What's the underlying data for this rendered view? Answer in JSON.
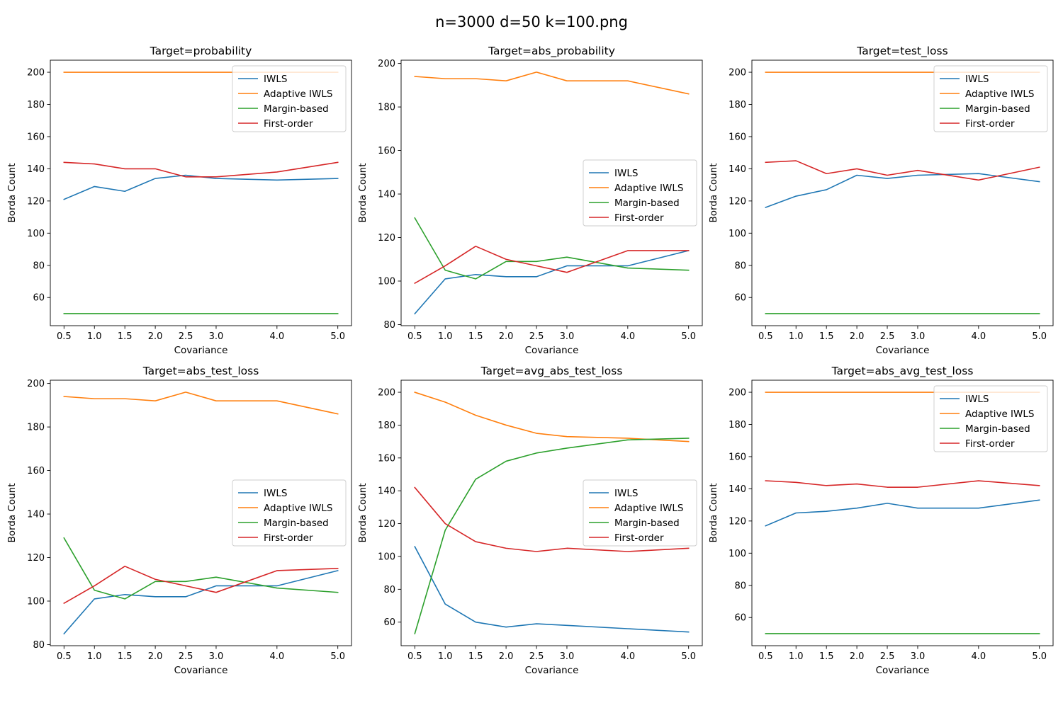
{
  "figure": {
    "title": "n=3000 d=50 k=100.png",
    "background": "#ffffff"
  },
  "series_styles": [
    {
      "name": "IWLS",
      "color": "#1f77b4"
    },
    {
      "name": "Adaptive IWLS",
      "color": "#ff7f0e"
    },
    {
      "name": "Margin-based",
      "color": "#2ca02c"
    },
    {
      "name": "First-order",
      "color": "#d62728"
    }
  ],
  "chart_data": [
    {
      "type": "line",
      "title": "Target=probability",
      "xlabel": "Covariance",
      "ylabel": "Borda Count",
      "x": [
        0.5,
        1.0,
        1.5,
        2.0,
        2.5,
        3.0,
        4.0,
        5.0
      ],
      "xticks": [
        "0.5",
        "1.0",
        "1.5",
        "2.0",
        "2.5",
        "3.0",
        "4.0",
        "5.0"
      ],
      "xlim": [
        0.275,
        5.225
      ],
      "ylim": [
        42.5,
        207.5
      ],
      "yticks": [
        60,
        80,
        100,
        120,
        140,
        160,
        180,
        200
      ],
      "legend": "upper-right",
      "grid": false,
      "series": [
        {
          "name": "IWLS",
          "values": [
            121,
            129,
            126,
            134,
            136,
            134,
            133,
            134
          ]
        },
        {
          "name": "Adaptive IWLS",
          "values": [
            200,
            200,
            200,
            200,
            200,
            200,
            200,
            200
          ]
        },
        {
          "name": "Margin-based",
          "values": [
            50,
            50,
            50,
            50,
            50,
            50,
            50,
            50
          ]
        },
        {
          "name": "First-order",
          "values": [
            144,
            143,
            140,
            140,
            135,
            135,
            138,
            144
          ]
        }
      ]
    },
    {
      "type": "line",
      "title": "Target=abs_probability",
      "xlabel": "Covariance",
      "ylabel": "Borda Count",
      "x": [
        0.5,
        1.0,
        1.5,
        2.0,
        2.5,
        3.0,
        4.0,
        5.0
      ],
      "xticks": [
        "0.5",
        "1.0",
        "1.5",
        "2.0",
        "2.5",
        "3.0",
        "4.0",
        "5.0"
      ],
      "xlim": [
        0.275,
        5.225
      ],
      "ylim": [
        79.5,
        201.5
      ],
      "yticks": [
        80,
        100,
        120,
        140,
        160,
        180,
        200
      ],
      "legend": "center-right",
      "grid": false,
      "series": [
        {
          "name": "IWLS",
          "values": [
            85,
            101,
            103,
            102,
            102,
            107,
            107,
            114
          ]
        },
        {
          "name": "Adaptive IWLS",
          "values": [
            194,
            193,
            193,
            192,
            196,
            192,
            192,
            186
          ]
        },
        {
          "name": "Margin-based",
          "values": [
            129,
            105,
            101,
            109,
            109,
            111,
            106,
            105
          ]
        },
        {
          "name": "First-order",
          "values": [
            99,
            107,
            116,
            110,
            107,
            104,
            114,
            114
          ]
        }
      ]
    },
    {
      "type": "line",
      "title": "Target=test_loss",
      "xlabel": "Covariance",
      "ylabel": "Borda Count",
      "x": [
        0.5,
        1.0,
        1.5,
        2.0,
        2.5,
        3.0,
        4.0,
        5.0
      ],
      "xticks": [
        "0.5",
        "1.0",
        "1.5",
        "2.0",
        "2.5",
        "3.0",
        "4.0",
        "5.0"
      ],
      "xlim": [
        0.275,
        5.225
      ],
      "ylim": [
        42.5,
        207.5
      ],
      "yticks": [
        60,
        80,
        100,
        120,
        140,
        160,
        180,
        200
      ],
      "legend": "upper-right",
      "grid": false,
      "series": [
        {
          "name": "IWLS",
          "values": [
            116,
            123,
            127,
            136,
            134,
            136,
            137,
            132
          ]
        },
        {
          "name": "Adaptive IWLS",
          "values": [
            200,
            200,
            200,
            200,
            200,
            200,
            200,
            200
          ]
        },
        {
          "name": "Margin-based",
          "values": [
            50,
            50,
            50,
            50,
            50,
            50,
            50,
            50
          ]
        },
        {
          "name": "First-order",
          "values": [
            144,
            145,
            137,
            140,
            136,
            139,
            133,
            141
          ]
        }
      ]
    },
    {
      "type": "line",
      "title": "Target=abs_test_loss",
      "xlabel": "Covariance",
      "ylabel": "Borda Count",
      "x": [
        0.5,
        1.0,
        1.5,
        2.0,
        2.5,
        3.0,
        4.0,
        5.0
      ],
      "xticks": [
        "0.5",
        "1.0",
        "1.5",
        "2.0",
        "2.5",
        "3.0",
        "4.0",
        "5.0"
      ],
      "xlim": [
        0.275,
        5.225
      ],
      "ylim": [
        79.5,
        201.5
      ],
      "yticks": [
        80,
        100,
        120,
        140,
        160,
        180,
        200
      ],
      "legend": "center-right",
      "grid": false,
      "series": [
        {
          "name": "IWLS",
          "values": [
            85,
            101,
            103,
            102,
            102,
            107,
            107,
            114
          ]
        },
        {
          "name": "Adaptive IWLS",
          "values": [
            194,
            193,
            193,
            192,
            196,
            192,
            192,
            186
          ]
        },
        {
          "name": "Margin-based",
          "values": [
            129,
            105,
            101,
            109,
            109,
            111,
            106,
            104
          ]
        },
        {
          "name": "First-order",
          "values": [
            99,
            107,
            116,
            110,
            107,
            104,
            114,
            115
          ]
        }
      ]
    },
    {
      "type": "line",
      "title": "Target=avg_abs_test_loss",
      "xlabel": "Covariance",
      "ylabel": "Borda Count",
      "x": [
        0.5,
        1.0,
        1.5,
        2.0,
        2.5,
        3.0,
        4.0,
        5.0
      ],
      "xticks": [
        "0.5",
        "1.0",
        "1.5",
        "2.0",
        "2.5",
        "3.0",
        "4.0",
        "5.0"
      ],
      "xlim": [
        0.275,
        5.225
      ],
      "ylim": [
        45.65,
        207.35
      ],
      "yticks": [
        60,
        80,
        100,
        120,
        140,
        160,
        180,
        200
      ],
      "legend": "center-right",
      "grid": false,
      "series": [
        {
          "name": "IWLS",
          "values": [
            106,
            71,
            60,
            57,
            59,
            58,
            56,
            54
          ]
        },
        {
          "name": "Adaptive IWLS",
          "values": [
            200,
            194,
            186,
            180,
            175,
            173,
            172,
            170
          ]
        },
        {
          "name": "Margin-based",
          "values": [
            53,
            116,
            147,
            158,
            163,
            166,
            171,
            172
          ]
        },
        {
          "name": "First-order",
          "values": [
            142,
            120,
            109,
            105,
            103,
            105,
            103,
            105
          ]
        }
      ]
    },
    {
      "type": "line",
      "title": "Target=abs_avg_test_loss",
      "xlabel": "Covariance",
      "ylabel": "Borda Count",
      "x": [
        0.5,
        1.0,
        1.5,
        2.0,
        2.5,
        3.0,
        4.0,
        5.0
      ],
      "xticks": [
        "0.5",
        "1.0",
        "1.5",
        "2.0",
        "2.5",
        "3.0",
        "4.0",
        "5.0"
      ],
      "xlim": [
        0.275,
        5.225
      ],
      "ylim": [
        42.5,
        207.5
      ],
      "yticks": [
        60,
        80,
        100,
        120,
        140,
        160,
        180,
        200
      ],
      "legend": "upper-right",
      "grid": false,
      "series": [
        {
          "name": "IWLS",
          "values": [
            117,
            125,
            126,
            128,
            131,
            128,
            128,
            133
          ]
        },
        {
          "name": "Adaptive IWLS",
          "values": [
            200,
            200,
            200,
            200,
            200,
            200,
            200,
            200
          ]
        },
        {
          "name": "Margin-based",
          "values": [
            50,
            50,
            50,
            50,
            50,
            50,
            50,
            50
          ]
        },
        {
          "name": "First-order",
          "values": [
            145,
            144,
            142,
            143,
            141,
            141,
            145,
            142
          ]
        }
      ]
    }
  ]
}
